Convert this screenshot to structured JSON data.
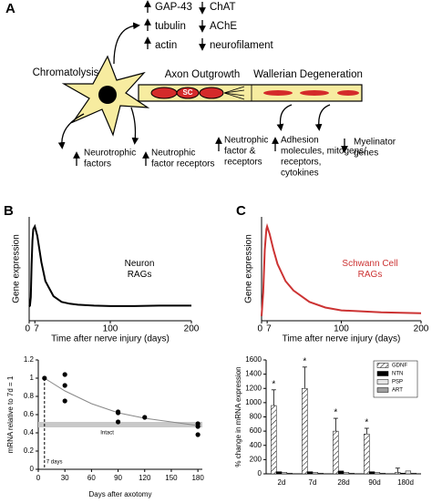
{
  "panel_a": {
    "label": "A",
    "up_genes": [
      "GAP-43",
      "tubulin",
      "actin"
    ],
    "down_genes": [
      "ChAT",
      "AChE",
      "neurofilament"
    ],
    "stages": [
      "Chromatolysis",
      "Axon Outgrowth",
      "Wallerian Degeneration"
    ],
    "sc": "SC",
    "cell_notes": [
      [
        "Neurotrophic",
        "factors"
      ],
      [
        "Neutrophic",
        "factor receptors"
      ]
    ],
    "distal_notes": [
      [
        "Neutrophic",
        "factor &",
        "receptors"
      ],
      [
        "Adhesion",
        "molecules, mitogens/",
        "receptors,",
        "cytokines"
      ],
      [
        "Myelinator",
        "genes"
      ]
    ]
  },
  "chart_data": [
    {
      "type": "line",
      "panel": "B",
      "ylabel": "Gene expression",
      "xlabel": "Time after nerve injury (days)",
      "xlim": [
        0,
        200
      ],
      "xticks": [
        0,
        7,
        100,
        200
      ],
      "ylim": [
        0,
        1.1
      ],
      "color": "#000000",
      "annotation": [
        "Neuron",
        "RAGs"
      ],
      "x": [
        0,
        1,
        2,
        3,
        4,
        5,
        7,
        10,
        15,
        20,
        30,
        40,
        50,
        60,
        80,
        100,
        130,
        160,
        200
      ],
      "values": [
        0.15,
        0.16,
        0.25,
        0.6,
        0.85,
        0.97,
        1.0,
        0.9,
        0.62,
        0.42,
        0.26,
        0.2,
        0.18,
        0.17,
        0.16,
        0.155,
        0.155,
        0.16,
        0.16
      ]
    },
    {
      "type": "line",
      "panel": "C",
      "ylabel": "Gene expression",
      "xlabel": "Time after nerve injury (days)",
      "xlim": [
        0,
        200
      ],
      "xticks": [
        0,
        7,
        100,
        200
      ],
      "ylim": [
        0,
        1.1
      ],
      "color": "#cc3333",
      "annotation": [
        "Schwann Cell",
        "RAGs"
      ],
      "x": [
        0,
        2,
        4,
        6,
        7,
        10,
        15,
        20,
        30,
        40,
        60,
        80,
        100,
        150,
        200
      ],
      "values": [
        0.05,
        0.3,
        0.75,
        0.97,
        1.0,
        0.92,
        0.75,
        0.6,
        0.42,
        0.32,
        0.2,
        0.14,
        0.11,
        0.09,
        0.08
      ]
    },
    {
      "type": "scatter",
      "ylabel": "mRNA relative to 7d = 1",
      "xlabel": "Days after axotomy",
      "xlim": [
        0,
        185
      ],
      "xticks": [
        0,
        30,
        60,
        90,
        120,
        150,
        180
      ],
      "ylim": [
        0,
        1.2
      ],
      "yticks": [
        0,
        0.2,
        0.4,
        0.6,
        0.8,
        1,
        1.2
      ],
      "color": "#000000",
      "x": [
        7,
        30,
        30,
        30,
        90,
        90,
        90,
        120,
        180,
        180,
        180
      ],
      "values": [
        1.0,
        1.04,
        0.92,
        0.75,
        0.63,
        0.62,
        0.52,
        0.57,
        0.5,
        0.47,
        0.38
      ],
      "fit": {
        "color": "#888888",
        "x": [
          7,
          30,
          60,
          90,
          120,
          150,
          180
        ],
        "values": [
          1.0,
          0.86,
          0.72,
          0.62,
          0.56,
          0.52,
          0.48
        ]
      },
      "band": {
        "label": "Intact",
        "color": "#c8c8c8",
        "values": [
          0.46,
          0.52
        ]
      },
      "marker": {
        "label": "7 days",
        "x": 7
      }
    },
    {
      "type": "bar",
      "ylabel": "% change in mRNA expression",
      "categories": [
        "2d",
        "7d",
        "28d",
        "90d",
        "180d"
      ],
      "ylim": [
        0,
        1600
      ],
      "yticks": [
        0,
        200,
        400,
        600,
        800,
        1000,
        1200,
        1400,
        1600
      ],
      "legend": "upper right",
      "significance": [
        "*",
        "*",
        "*",
        "*",
        null
      ],
      "series": [
        {
          "name": "GDNF",
          "color": "#ffffff",
          "pattern": "hatch",
          "values": [
            960,
            1200,
            600,
            560,
            20
          ],
          "errors": [
            220,
            300,
            180,
            80,
            60
          ]
        },
        {
          "name": "NTN",
          "color": "#000000",
          "values": [
            30,
            30,
            40,
            30,
            10
          ]
        },
        {
          "name": "PSP",
          "color": "#e6e6e6",
          "values": [
            20,
            20,
            20,
            20,
            40
          ]
        },
        {
          "name": "ART",
          "color": "#a0a0a0",
          "values": [
            10,
            10,
            10,
            10,
            10
          ]
        }
      ]
    }
  ]
}
